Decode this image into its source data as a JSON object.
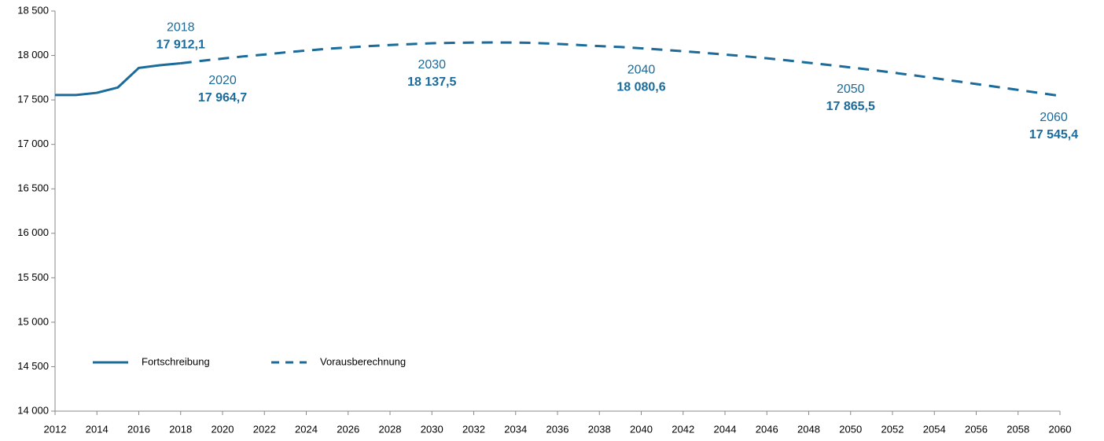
{
  "chart_data": {
    "type": "line",
    "x": [
      2012,
      2013,
      2014,
      2015,
      2016,
      2017,
      2018,
      2019,
      2020,
      2021,
      2022,
      2023,
      2024,
      2025,
      2026,
      2027,
      2028,
      2029,
      2030,
      2031,
      2032,
      2033,
      2034,
      2035,
      2036,
      2037,
      2038,
      2039,
      2040,
      2041,
      2042,
      2043,
      2044,
      2045,
      2046,
      2047,
      2048,
      2049,
      2050,
      2051,
      2052,
      2053,
      2054,
      2055,
      2056,
      2057,
      2058,
      2059,
      2060
    ],
    "series": [
      {
        "name": "Fortschreibung",
        "color": "#1b6b9b",
        "dash": false,
        "values": [
          17555,
          17555,
          17580,
          17640,
          17860,
          17890,
          17912.1,
          null,
          null,
          null,
          null,
          null,
          null,
          null,
          null,
          null,
          null,
          null,
          null,
          null,
          null,
          null,
          null,
          null,
          null,
          null,
          null,
          null,
          null,
          null,
          null,
          null,
          null,
          null,
          null,
          null,
          null,
          null,
          null,
          null,
          null,
          null,
          null,
          null,
          null,
          null,
          null,
          null,
          null
        ]
      },
      {
        "name": "Vorausberechnung",
        "color": "#1b6b9b",
        "dash": true,
        "values": [
          null,
          null,
          null,
          null,
          null,
          null,
          17912.1,
          17940,
          17964.7,
          17990,
          18010,
          18035,
          18055,
          18075,
          18090,
          18105,
          18118,
          18128,
          18137.5,
          18142,
          18145,
          18146,
          18145,
          18140,
          18130,
          18118,
          18105,
          18095,
          18080.6,
          18065,
          18048,
          18030,
          18010,
          17990,
          17968,
          17944,
          17918,
          17892,
          17865.5,
          17838,
          17808,
          17777,
          17745,
          17712,
          17679,
          17646,
          17613,
          17579,
          17545.4
        ]
      }
    ],
    "annotations": [
      {
        "year": "2018",
        "x": 2018,
        "value": 17912.1,
        "value_label": "17 912,1"
      },
      {
        "year": "2020",
        "x": 2020,
        "value": 17964.7,
        "value_label": "17 964,7"
      },
      {
        "year": "2030",
        "x": 2030,
        "value": 18137.5,
        "value_label": "18 137,5"
      },
      {
        "year": "2040",
        "x": 2040,
        "value": 18080.6,
        "value_label": "18 080,6"
      },
      {
        "year": "2050",
        "x": 2050,
        "value": 17865.5,
        "value_label": "17 865,5"
      },
      {
        "year": "2060",
        "x": 2060,
        "value": 17545.4,
        "value_label": "17 545,4"
      }
    ],
    "xlim": [
      2012,
      2060
    ],
    "xticks": [
      2012,
      2014,
      2016,
      2018,
      2020,
      2022,
      2024,
      2026,
      2028,
      2030,
      2032,
      2034,
      2036,
      2038,
      2040,
      2042,
      2044,
      2046,
      2048,
      2050,
      2052,
      2054,
      2056,
      2058,
      2060
    ],
    "ylim": [
      14000,
      18500
    ],
    "yticks": [
      {
        "value": 14000,
        "label": "14 000"
      },
      {
        "value": 14500,
        "label": "14 500"
      },
      {
        "value": 15000,
        "label": "15 000"
      },
      {
        "value": 15500,
        "label": "15 500"
      },
      {
        "value": 16000,
        "label": "16 000"
      },
      {
        "value": 16500,
        "label": "16 500"
      },
      {
        "value": 17000,
        "label": "17 000"
      },
      {
        "value": 17500,
        "label": "17 500"
      },
      {
        "value": 18000,
        "label": "18 000"
      },
      {
        "value": 18500,
        "label": "18 500"
      }
    ],
    "grid": false,
    "legend": "lower left"
  }
}
